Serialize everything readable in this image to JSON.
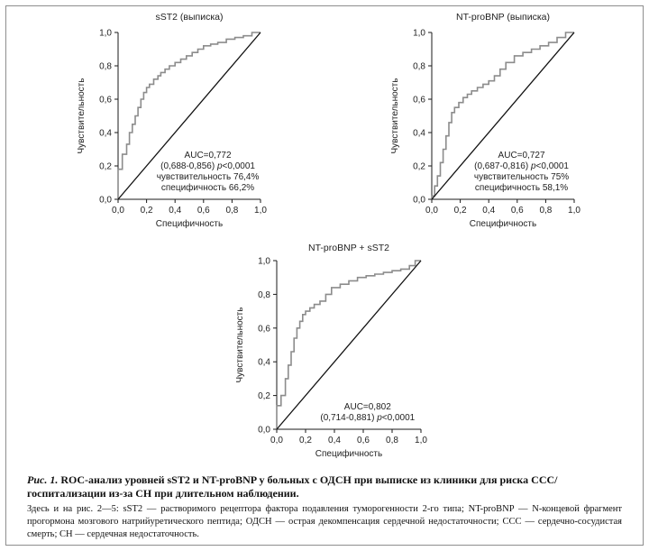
{
  "chart_data": [
    {
      "type": "line",
      "title": "sST2 (выписка)",
      "xlabel": "Специфичность",
      "ylabel": "Чувствительность",
      "xlim": [
        0,
        1
      ],
      "ylim": [
        0,
        1
      ],
      "x_ticks": [
        "0,0",
        "0,2",
        "0,4",
        "0,6",
        "0,8",
        "1,0"
      ],
      "y_ticks": [
        "0,0",
        "0,2",
        "0,4",
        "0,6",
        "0,8",
        "1,0"
      ],
      "annotation": [
        "AUC=0,772",
        "(0,688-0,856) ",
        "p",
        "<0,0001",
        "чувствительность 76,4%",
        "специфичность 66,2%"
      ],
      "series": [
        {
          "name": "ROC",
          "x": [
            0,
            0,
            0.03,
            0.03,
            0.06,
            0.06,
            0.08,
            0.08,
            0.1,
            0.1,
            0.12,
            0.12,
            0.14,
            0.14,
            0.16,
            0.16,
            0.18,
            0.18,
            0.2,
            0.2,
            0.22,
            0.22,
            0.25,
            0.25,
            0.28,
            0.28,
            0.3,
            0.3,
            0.33,
            0.33,
            0.36,
            0.36,
            0.4,
            0.4,
            0.44,
            0.44,
            0.48,
            0.48,
            0.52,
            0.52,
            0.56,
            0.56,
            0.6,
            0.6,
            0.65,
            0.65,
            0.7,
            0.7,
            0.76,
            0.76,
            0.82,
            0.82,
            0.88,
            0.88,
            0.94,
            0.94,
            1.0
          ],
          "y": [
            0,
            0.18,
            0.18,
            0.27,
            0.27,
            0.33,
            0.33,
            0.4,
            0.4,
            0.45,
            0.45,
            0.5,
            0.5,
            0.55,
            0.55,
            0.6,
            0.6,
            0.64,
            0.64,
            0.67,
            0.67,
            0.69,
            0.69,
            0.72,
            0.72,
            0.74,
            0.74,
            0.76,
            0.76,
            0.78,
            0.78,
            0.8,
            0.8,
            0.82,
            0.82,
            0.84,
            0.84,
            0.86,
            0.86,
            0.88,
            0.88,
            0.9,
            0.9,
            0.92,
            0.92,
            0.93,
            0.93,
            0.94,
            0.94,
            0.96,
            0.96,
            0.97,
            0.97,
            0.98,
            0.98,
            1.0,
            1.0
          ]
        },
        {
          "name": "reference",
          "x": [
            0,
            1
          ],
          "y": [
            0,
            1
          ]
        }
      ]
    },
    {
      "type": "line",
      "title": "NT-proBNP (выписка)",
      "xlabel": "Специфичность",
      "ylabel": "Чувствительность",
      "xlim": [
        0,
        1
      ],
      "ylim": [
        0,
        1
      ],
      "x_ticks": [
        "0,0",
        "0,2",
        "0,4",
        "0,6",
        "0,8",
        "1,0"
      ],
      "y_ticks": [
        "0,0",
        "0,2",
        "0,4",
        "0,6",
        "0,8",
        "1,0"
      ],
      "annotation": [
        "AUC=0,727",
        "(0,687-0,816) ",
        "p",
        "<0,0001",
        "чувствительность 75%",
        "специфичность 58,1%"
      ],
      "series": [
        {
          "name": "ROC",
          "x": [
            0,
            0,
            0.02,
            0.02,
            0.04,
            0.04,
            0.06,
            0.06,
            0.08,
            0.08,
            0.1,
            0.1,
            0.12,
            0.12,
            0.14,
            0.14,
            0.16,
            0.16,
            0.19,
            0.19,
            0.22,
            0.22,
            0.25,
            0.25,
            0.28,
            0.28,
            0.32,
            0.32,
            0.36,
            0.36,
            0.4,
            0.4,
            0.44,
            0.44,
            0.48,
            0.48,
            0.52,
            0.52,
            0.58,
            0.58,
            0.64,
            0.64,
            0.7,
            0.7,
            0.76,
            0.76,
            0.82,
            0.82,
            0.88,
            0.88,
            0.94,
            0.94,
            1.0
          ],
          "y": [
            0,
            0.02,
            0.02,
            0.08,
            0.08,
            0.14,
            0.14,
            0.22,
            0.22,
            0.3,
            0.3,
            0.38,
            0.38,
            0.46,
            0.46,
            0.52,
            0.52,
            0.55,
            0.55,
            0.58,
            0.58,
            0.61,
            0.61,
            0.63,
            0.63,
            0.65,
            0.65,
            0.67,
            0.67,
            0.69,
            0.69,
            0.71,
            0.71,
            0.74,
            0.74,
            0.78,
            0.78,
            0.82,
            0.82,
            0.86,
            0.86,
            0.88,
            0.88,
            0.9,
            0.9,
            0.92,
            0.92,
            0.94,
            0.94,
            0.97,
            0.97,
            1.0,
            1.0
          ]
        },
        {
          "name": "reference",
          "x": [
            0,
            1
          ],
          "y": [
            0,
            1
          ]
        }
      ]
    },
    {
      "type": "line",
      "title": "NT-proBNP + sST2",
      "xlabel": "Специфичность",
      "ylabel": "Чувствительность",
      "xlim": [
        0,
        1
      ],
      "ylim": [
        0,
        1
      ],
      "x_ticks": [
        "0,0",
        "0,2",
        "0,4",
        "0,6",
        "0,8",
        "1,0"
      ],
      "y_ticks": [
        "0,0",
        "0,2",
        "0,4",
        "0,6",
        "0,8",
        "1,0"
      ],
      "annotation": [
        "AUC=0,802",
        "(0,714-0,881) ",
        "p",
        "<0,0001"
      ],
      "series": [
        {
          "name": "ROC",
          "x": [
            0,
            0,
            0.03,
            0.03,
            0.06,
            0.06,
            0.08,
            0.08,
            0.1,
            0.1,
            0.12,
            0.12,
            0.14,
            0.14,
            0.16,
            0.16,
            0.18,
            0.18,
            0.2,
            0.2,
            0.23,
            0.23,
            0.26,
            0.26,
            0.3,
            0.3,
            0.34,
            0.34,
            0.38,
            0.38,
            0.44,
            0.44,
            0.5,
            0.5,
            0.56,
            0.56,
            0.62,
            0.62,
            0.68,
            0.68,
            0.74,
            0.74,
            0.8,
            0.8,
            0.86,
            0.86,
            0.92,
            0.92,
            0.96,
            0.96,
            1.0
          ],
          "y": [
            0,
            0.14,
            0.14,
            0.2,
            0.2,
            0.3,
            0.3,
            0.38,
            0.38,
            0.46,
            0.46,
            0.54,
            0.54,
            0.6,
            0.6,
            0.64,
            0.64,
            0.68,
            0.68,
            0.7,
            0.7,
            0.72,
            0.72,
            0.74,
            0.74,
            0.76,
            0.76,
            0.8,
            0.8,
            0.84,
            0.84,
            0.86,
            0.86,
            0.88,
            0.88,
            0.9,
            0.9,
            0.91,
            0.91,
            0.92,
            0.92,
            0.93,
            0.93,
            0.94,
            0.94,
            0.95,
            0.95,
            0.97,
            0.97,
            1.0,
            1.0
          ]
        },
        {
          "name": "reference",
          "x": [
            0,
            1
          ],
          "y": [
            0,
            1
          ]
        }
      ]
    }
  ],
  "caption": {
    "label": "Рис. 1.",
    "title": " ROC-анализ уровней sST2 и NT-proBNP у больных с ОДСН при выписке из клиники для риска ССС/госпитализации из-за СН при длительном наблюдении.",
    "note": "Здесь и на рис. 2—5: sST2 — растворимого рецептора фактора подавления туморогенности 2-го типа; NT-proBNP — N-концевой фрагмент прогормона мозгового натрийуретического пептида; ОДСН — острая декомпенсация сердечной недостаточности; ССС — сердечно-сосудистая смерть; СН — сердечная недостаточность."
  }
}
